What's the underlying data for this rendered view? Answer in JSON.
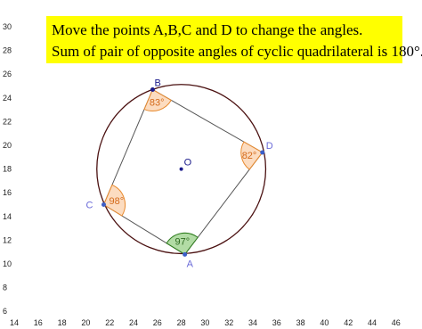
{
  "header": {
    "lines": [
      "Move the points A,B,C and D to change the angles.",
      "Sum of pair of opposite angles of cyclic quadrilateral is 180°."
    ]
  },
  "axes": {
    "xticks": [
      14,
      16,
      18,
      20,
      22,
      24,
      26,
      28,
      30,
      32,
      34,
      36,
      38,
      40,
      42,
      44,
      46
    ],
    "yticks": [
      30,
      28,
      26,
      24,
      22,
      20,
      18,
      16,
      14,
      12,
      10,
      8,
      6
    ]
  },
  "points": [
    {
      "name": "B",
      "x": 25.6,
      "y": 24.7
    },
    {
      "name": "D",
      "x": 34.8,
      "y": 19.4
    },
    {
      "name": "A",
      "x": 28.3,
      "y": 10.8
    },
    {
      "name": "C",
      "x": 21.5,
      "y": 15.0
    }
  ],
  "center": {
    "name": "O",
    "x": 28.0,
    "y": 18.0
  },
  "angles": [
    {
      "vertex": "B",
      "label": "83°"
    },
    {
      "vertex": "D",
      "label": "82°"
    },
    {
      "vertex": "A",
      "label": "97°"
    },
    {
      "vertex": "C",
      "label": "98°"
    }
  ]
}
